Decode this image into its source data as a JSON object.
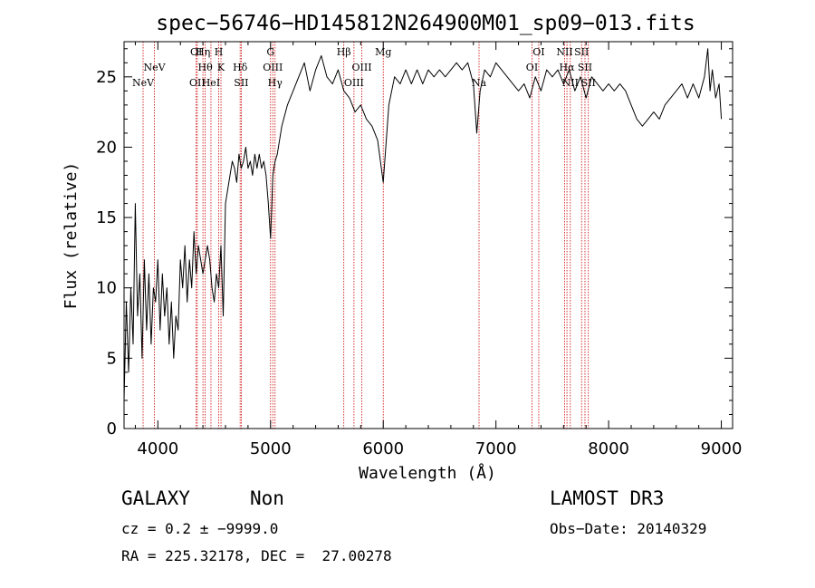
{
  "chart_data": {
    "type": "line",
    "title": "spec−56746−HD145812N264900M01_sp09−013.fits",
    "xlabel": "Wavelength (Å)",
    "ylabel": "Flux (relative)",
    "xlim": [
      3700,
      9100
    ],
    "ylim": [
      0,
      27.5
    ],
    "xticks": [
      4000,
      5000,
      6000,
      7000,
      8000,
      9000
    ],
    "yticks": [
      0,
      5,
      10,
      15,
      20,
      25
    ],
    "grid": false,
    "series": [
      {
        "color": "#000000",
        "points": [
          [
            3700,
            2
          ],
          [
            3720,
            9
          ],
          [
            3740,
            4
          ],
          [
            3760,
            10
          ],
          [
            3780,
            6
          ],
          [
            3800,
            16
          ],
          [
            3820,
            8
          ],
          [
            3840,
            11
          ],
          [
            3860,
            5
          ],
          [
            3880,
            12
          ],
          [
            3900,
            7
          ],
          [
            3920,
            11
          ],
          [
            3940,
            6
          ],
          [
            3960,
            10
          ],
          [
            3980,
            9
          ],
          [
            4000,
            12
          ],
          [
            4020,
            7
          ],
          [
            4040,
            11
          ],
          [
            4060,
            8
          ],
          [
            4080,
            10
          ],
          [
            4100,
            6
          ],
          [
            4120,
            9
          ],
          [
            4140,
            5
          ],
          [
            4160,
            8
          ],
          [
            4180,
            7
          ],
          [
            4200,
            12
          ],
          [
            4220,
            10
          ],
          [
            4240,
            13
          ],
          [
            4260,
            9
          ],
          [
            4280,
            12
          ],
          [
            4300,
            10
          ],
          [
            4320,
            14
          ],
          [
            4340,
            11
          ],
          [
            4360,
            13
          ],
          [
            4380,
            12
          ],
          [
            4400,
            11
          ],
          [
            4420,
            12
          ],
          [
            4440,
            13
          ],
          [
            4460,
            12
          ],
          [
            4480,
            10
          ],
          [
            4500,
            9
          ],
          [
            4520,
            11
          ],
          [
            4540,
            10
          ],
          [
            4560,
            13
          ],
          [
            4580,
            8
          ],
          [
            4600,
            16
          ],
          [
            4620,
            17
          ],
          [
            4640,
            18
          ],
          [
            4660,
            19
          ],
          [
            4680,
            18.5
          ],
          [
            4700,
            17.5
          ],
          [
            4720,
            19.5
          ],
          [
            4740,
            18.5
          ],
          [
            4760,
            19
          ],
          [
            4780,
            20
          ],
          [
            4800,
            18.5
          ],
          [
            4820,
            19
          ],
          [
            4840,
            18
          ],
          [
            4860,
            19.5
          ],
          [
            4880,
            18.5
          ],
          [
            4900,
            19.5
          ],
          [
            4920,
            18.5
          ],
          [
            4940,
            19
          ],
          [
            4960,
            18
          ],
          [
            4980,
            16
          ],
          [
            5000,
            13.5
          ],
          [
            5020,
            18
          ],
          [
            5040,
            19
          ],
          [
            5060,
            19.5
          ],
          [
            5080,
            20.5
          ],
          [
            5100,
            21.5
          ],
          [
            5150,
            23
          ],
          [
            5200,
            24
          ],
          [
            5250,
            25
          ],
          [
            5300,
            26
          ],
          [
            5350,
            24
          ],
          [
            5400,
            25.5
          ],
          [
            5450,
            26.5
          ],
          [
            5500,
            25
          ],
          [
            5550,
            24.5
          ],
          [
            5600,
            25.5
          ],
          [
            5650,
            24
          ],
          [
            5700,
            23.5
          ],
          [
            5750,
            22.5
          ],
          [
            5800,
            23
          ],
          [
            5850,
            22
          ],
          [
            5900,
            21.5
          ],
          [
            5950,
            20.5
          ],
          [
            6000,
            17.5
          ],
          [
            6050,
            23
          ],
          [
            6100,
            25
          ],
          [
            6150,
            24.5
          ],
          [
            6200,
            25.5
          ],
          [
            6250,
            24.5
          ],
          [
            6300,
            25.5
          ],
          [
            6350,
            24.5
          ],
          [
            6400,
            25.5
          ],
          [
            6450,
            25
          ],
          [
            6500,
            25.5
          ],
          [
            6550,
            25
          ],
          [
            6600,
            25.5
          ],
          [
            6650,
            26
          ],
          [
            6700,
            25.5
          ],
          [
            6750,
            26
          ],
          [
            6800,
            24.5
          ],
          [
            6830,
            21
          ],
          [
            6860,
            24
          ],
          [
            6900,
            25.5
          ],
          [
            6950,
            25
          ],
          [
            7000,
            26
          ],
          [
            7050,
            25.5
          ],
          [
            7100,
            25
          ],
          [
            7150,
            24.5
          ],
          [
            7200,
            24
          ],
          [
            7250,
            24.5
          ],
          [
            7300,
            23.5
          ],
          [
            7350,
            25
          ],
          [
            7400,
            24
          ],
          [
            7450,
            25.5
          ],
          [
            7500,
            25
          ],
          [
            7550,
            25.5
          ],
          [
            7600,
            24.5
          ],
          [
            7650,
            25.5
          ],
          [
            7700,
            24
          ],
          [
            7750,
            25
          ],
          [
            7800,
            23.5
          ],
          [
            7850,
            25
          ],
          [
            7900,
            24.5
          ],
          [
            7950,
            24
          ],
          [
            8000,
            24.5
          ],
          [
            8050,
            24
          ],
          [
            8100,
            24.5
          ],
          [
            8150,
            24
          ],
          [
            8200,
            23
          ],
          [
            8250,
            22
          ],
          [
            8300,
            21.5
          ],
          [
            8350,
            22
          ],
          [
            8400,
            22.5
          ],
          [
            8450,
            22
          ],
          [
            8500,
            23
          ],
          [
            8550,
            23.5
          ],
          [
            8600,
            24
          ],
          [
            8650,
            24.5
          ],
          [
            8700,
            23.5
          ],
          [
            8750,
            24.5
          ],
          [
            8800,
            23.5
          ],
          [
            8850,
            25
          ],
          [
            8880,
            27
          ],
          [
            8900,
            24
          ],
          [
            8920,
            25.5
          ],
          [
            8950,
            23.5
          ],
          [
            8980,
            24.5
          ],
          [
            9000,
            22
          ]
        ]
      }
    ],
    "emission_lines": [
      {
        "wavelength": 3869,
        "labels": [
          "NeV"
        ],
        "label_row": 2
      },
      {
        "wavelength": 3970,
        "labels": [
          "NeV"
        ],
        "label_row": 1
      },
      {
        "wavelength": 4340,
        "labels": [
          "OI"
        ],
        "label_row": 0
      },
      {
        "wavelength": 4350,
        "labels": [
          "OII"
        ],
        "label_row": 2
      },
      {
        "wavelength": 4400,
        "labels": [
          "Hη"
        ],
        "label_row": 0
      },
      {
        "wavelength": 4420,
        "labels": [
          "Hθ"
        ],
        "label_row": 1
      },
      {
        "wavelength": 4471,
        "labels": [
          "HeI"
        ],
        "label_row": 2
      },
      {
        "wavelength": 4540,
        "labels": [
          "H"
        ],
        "label_row": 0
      },
      {
        "wavelength": 4560,
        "labels": [
          "K"
        ],
        "label_row": 1
      },
      {
        "wavelength": 4730,
        "labels": [
          "Hδ"
        ],
        "label_row": 1
      },
      {
        "wavelength": 4740,
        "labels": [
          "SII"
        ],
        "label_row": 2
      },
      {
        "wavelength": 5000,
        "labels": [
          "G"
        ],
        "label_row": 0
      },
      {
        "wavelength": 5020,
        "labels": [
          "OIII"
        ],
        "label_row": 1
      },
      {
        "wavelength": 5040,
        "labels": [
          "Hγ"
        ],
        "label_row": 2
      },
      {
        "wavelength": 5650,
        "labels": [
          "Hβ"
        ],
        "label_row": 0
      },
      {
        "wavelength": 5740,
        "labels": [
          "OIII"
        ],
        "label_row": 2
      },
      {
        "wavelength": 5810,
        "labels": [
          "OIII"
        ],
        "label_row": 1
      },
      {
        "wavelength": 6000,
        "labels": [
          "Mg"
        ],
        "label_row": 0
      },
      {
        "wavelength": 6850,
        "labels": [
          "Na"
        ],
        "label_row": 2
      },
      {
        "wavelength": 7320,
        "labels": [
          "OI"
        ],
        "label_row": 1
      },
      {
        "wavelength": 7380,
        "labels": [
          "OI"
        ],
        "label_row": 0
      },
      {
        "wavelength": 7610,
        "labels": [
          "NII"
        ],
        "label_row": 0
      },
      {
        "wavelength": 7630,
        "labels": [
          "Hα"
        ],
        "label_row": 1
      },
      {
        "wavelength": 7660,
        "labels": [
          "NII"
        ],
        "label_row": 2
      },
      {
        "wavelength": 7760,
        "labels": [
          "SII"
        ],
        "label_row": 0
      },
      {
        "wavelength": 7790,
        "labels": [
          "SII"
        ],
        "label_row": 1
      },
      {
        "wavelength": 7820,
        "labels": [
          "SII"
        ],
        "label_row": 2
      }
    ],
    "line_color": "#cc0000"
  },
  "info": {
    "object_class": "GALAXY",
    "subclass": "Non",
    "survey": "LAMOST DR3",
    "redshift_line": "cz = 0.2 ± −9999.0",
    "obs_date_line": "Obs−Date: 20140329",
    "coords_line": "RA = 225.32178, DEC =  27.00278"
  }
}
